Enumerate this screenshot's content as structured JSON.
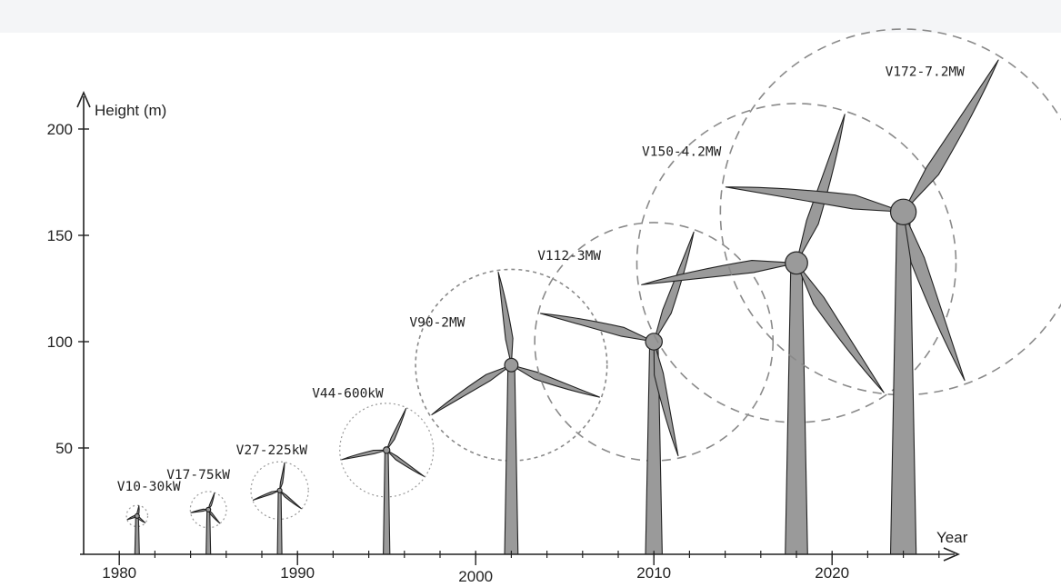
{
  "y_axis": {
    "label": "Height (m)",
    "ticks": [
      {
        "label": "200",
        "value": 200
      },
      {
        "label": "150",
        "value": 150
      },
      {
        "label": "100",
        "value": 100
      },
      {
        "label": "50",
        "value": 50
      }
    ]
  },
  "x_axis": {
    "label": "Year",
    "ticks": [
      {
        "label": "1980",
        "value": 1980
      },
      {
        "label": "1990",
        "value": 1990
      },
      {
        "label": "2000",
        "value": 2000
      },
      {
        "label": "2010",
        "value": 2010
      },
      {
        "label": "2020",
        "value": 2020
      }
    ]
  },
  "turbines": [
    {
      "model": "V10-30kW",
      "year": 1981,
      "hub_height": 18,
      "rotor_diameter": 10
    },
    {
      "model": "V17-75kW",
      "year": 1985,
      "hub_height": 21,
      "rotor_diameter": 17
    },
    {
      "model": "V27-225kW",
      "year": 1989,
      "hub_height": 30,
      "rotor_diameter": 27
    },
    {
      "model": "V44-600kW",
      "year": 1995,
      "hub_height": 49,
      "rotor_diameter": 44
    },
    {
      "model": "V90-2MW",
      "year": 2002,
      "hub_height": 89,
      "rotor_diameter": 90
    },
    {
      "model": "V112-3MW",
      "year": 2010,
      "hub_height": 100,
      "rotor_diameter": 112
    },
    {
      "model": "V150-4.2MW",
      "year": 2018,
      "hub_height": 137,
      "rotor_diameter": 150
    },
    {
      "model": "V172-7.2MW",
      "year": 2024,
      "hub_height": 161,
      "rotor_diameter": 172
    }
  ]
}
